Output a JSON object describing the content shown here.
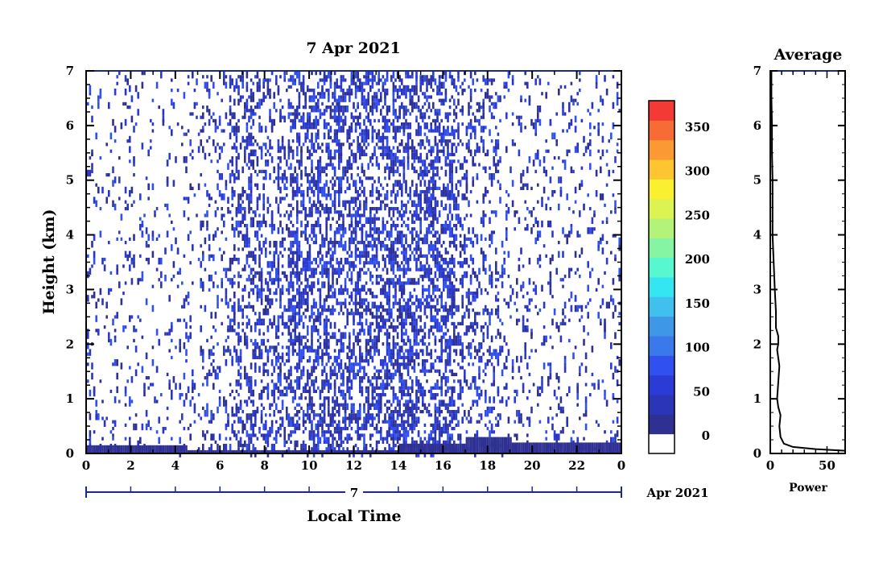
{
  "chart_data": [
    {
      "type": "heatmap",
      "title": "7 Apr 2021",
      "xlabel": "Local Time",
      "ylabel": "Height (km)",
      "xlim": [
        0,
        24
      ],
      "ylim": [
        0,
        7
      ],
      "x_ticks": [
        "0",
        "2",
        "4",
        "6",
        "8",
        "10",
        "12",
        "14",
        "16",
        "18",
        "20",
        "22",
        "0"
      ],
      "y_ticks": [
        "0",
        "1",
        "2",
        "3",
        "4",
        "5",
        "6",
        "7"
      ],
      "date_axis": {
        "day": "7",
        "month_year": "Apr 2021"
      },
      "colorbar": {
        "range": [
          -20,
          380
        ],
        "ticks": [
          "0",
          "50",
          "100",
          "150",
          "200",
          "250",
          "300",
          "350"
        ],
        "colors": [
          "#ffffff",
          "#2e3192",
          "#2a35b8",
          "#2b3bd6",
          "#3050f0",
          "#3a78ec",
          "#3f97e8",
          "#3fc0ef",
          "#33e6f2",
          "#57f7cf",
          "#86f5a3",
          "#b3f37a",
          "#dcf352",
          "#fbf02f",
          "#fdc52f",
          "#fb9a33",
          "#f76c35",
          "#f43a34"
        ]
      },
      "noise_activity": [
        {
          "from": 0.0,
          "to": 5.0,
          "density": 0.08
        },
        {
          "from": 5.0,
          "to": 6.5,
          "density": 0.14
        },
        {
          "from": 6.5,
          "to": 9.0,
          "density": 0.28
        },
        {
          "from": 9.0,
          "to": 16.5,
          "density": 0.42
        },
        {
          "from": 16.5,
          "to": 18.5,
          "density": 0.22
        },
        {
          "from": 18.5,
          "to": 24.0,
          "density": 0.1
        }
      ],
      "surface_layer": [
        {
          "from": 0.0,
          "to": 4.5,
          "top_km": 0.15
        },
        {
          "from": 4.5,
          "to": 14.0,
          "top_km": 0.06
        },
        {
          "from": 14.0,
          "to": 17.0,
          "top_km": 0.18
        },
        {
          "from": 17.0,
          "to": 19.0,
          "top_km": 0.3
        },
        {
          "from": 19.0,
          "to": 24.0,
          "top_km": 0.2
        }
      ]
    },
    {
      "type": "line",
      "title": "Average",
      "xlabel": "Power",
      "ylabel": "",
      "xlim": [
        0,
        66
      ],
      "ylim": [
        0,
        7
      ],
      "x_ticks": [
        "0",
        "50"
      ],
      "y_ticks": [
        "0",
        "1",
        "2",
        "3",
        "4",
        "5",
        "6",
        "7"
      ],
      "x": [
        66,
        40,
        20,
        12,
        9,
        8,
        9,
        7,
        6,
        7,
        8,
        6,
        7,
        7,
        5,
        5,
        4,
        3,
        2,
        2,
        2,
        1.5,
        1.5,
        1,
        1,
        1
      ],
      "y": [
        0.05,
        0.08,
        0.12,
        0.18,
        0.3,
        0.5,
        0.7,
        0.85,
        1.0,
        1.3,
        1.6,
        1.9,
        2.0,
        2.15,
        2.3,
        2.6,
        3.0,
        3.5,
        4.0,
        4.5,
        5.0,
        5.5,
        6.0,
        6.5,
        6.8,
        7.0
      ]
    }
  ]
}
